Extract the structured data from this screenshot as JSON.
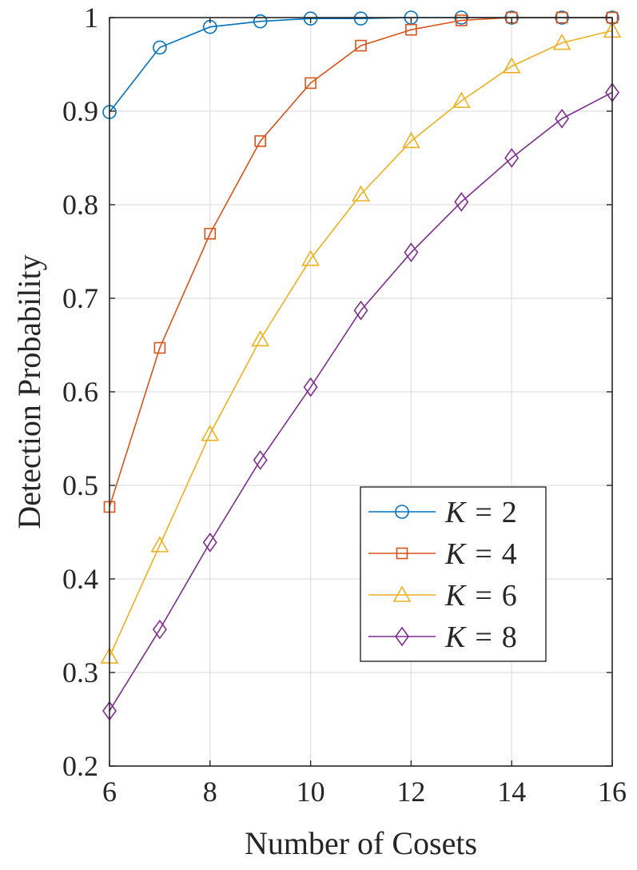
{
  "chart_data": {
    "type": "line",
    "title": "",
    "xlabel": "Number of Cosets",
    "ylabel": "Detection Probability",
    "xlim": [
      6,
      16
    ],
    "ylim": [
      0.2,
      1
    ],
    "xticks": [
      "6",
      "8",
      "10",
      "12",
      "14",
      "16"
    ],
    "yticks": [
      "0.2",
      "0.3",
      "0.4",
      "0.5",
      "0.6",
      "0.7",
      "0.8",
      "0.9",
      "1"
    ],
    "grid": true,
    "legend_position": "lower-right",
    "x": [
      6,
      7,
      8,
      9,
      10,
      11,
      12,
      13,
      14,
      15,
      16
    ],
    "series": [
      {
        "name": "K = 2",
        "legend_var": "K",
        "legend_op": "=",
        "legend_val": "2",
        "color": "#0072BD",
        "marker": "circle",
        "values": [
          0.899,
          0.968,
          0.99,
          0.996,
          0.999,
          0.999,
          1.0,
          1.0,
          1.0,
          1.0,
          1.0
        ]
      },
      {
        "name": "K = 4",
        "legend_var": "K",
        "legend_op": "=",
        "legend_val": "4",
        "color": "#D95319",
        "marker": "square",
        "values": [
          0.477,
          0.647,
          0.769,
          0.868,
          0.93,
          0.97,
          0.987,
          0.997,
          1.0,
          1.0,
          1.0
        ]
      },
      {
        "name": "K = 6",
        "legend_var": "K",
        "legend_op": "=",
        "legend_val": "6",
        "color": "#EDB120",
        "marker": "triangle",
        "values": [
          0.317,
          0.436,
          0.555,
          0.656,
          0.742,
          0.811,
          0.868,
          0.911,
          0.948,
          0.973,
          0.986
        ]
      },
      {
        "name": "K = 8",
        "legend_var": "K",
        "legend_op": "=",
        "legend_val": "8",
        "color": "#7E2F8E",
        "marker": "diamond",
        "values": [
          0.259,
          0.346,
          0.439,
          0.527,
          0.605,
          0.687,
          0.749,
          0.803,
          0.85,
          0.892,
          0.92
        ]
      }
    ]
  }
}
